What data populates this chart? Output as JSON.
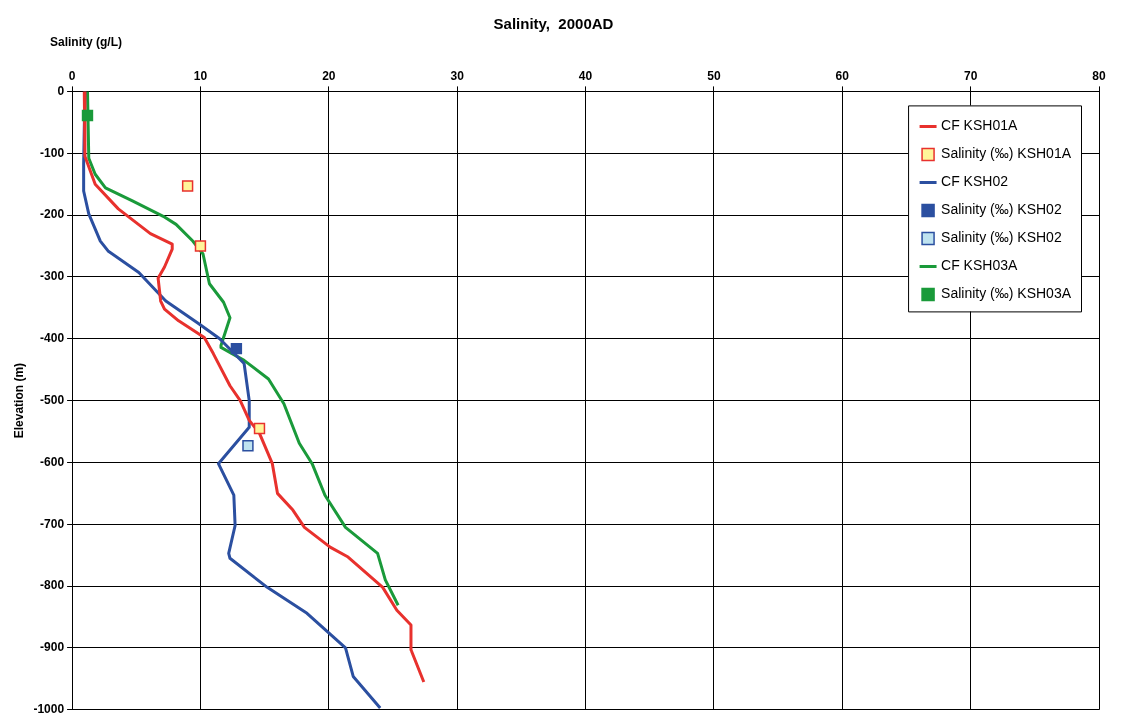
{
  "chart_data": {
    "type": "line",
    "title": "Salinity,  2000AD",
    "xlabel": "Salinity (g/L)",
    "ylabel": "Elevation (m)",
    "xlim": [
      0,
      80
    ],
    "xticks": [
      0,
      10,
      20,
      30,
      40,
      50,
      60,
      70,
      80
    ],
    "ylim": [
      -1000,
      0
    ],
    "yticks": [
      -1000,
      -900,
      -800,
      -700,
      -600,
      -500,
      -400,
      -300,
      -200,
      -100,
      0
    ],
    "grid": true,
    "legend": "top right",
    "marker": "none",
    "line_style": "solid",
    "series": [
      {
        "name": "CF KSH01A",
        "type": "line",
        "color": "#e8312d",
        "x": [
          0.95,
          1.0,
          1.8,
          3.6,
          6.1,
          7.8,
          7.8,
          7.2,
          6.7,
          6.9,
          7.2,
          8.3,
          10.3,
          11.0,
          12.3,
          13.1,
          13.8,
          14.6,
          15.6,
          16.0,
          17.2,
          18.1,
          20.1,
          21.5,
          24.2,
          25.3,
          26.4,
          26.4,
          27.4
        ],
        "values": [
          0,
          -105,
          -150,
          -190,
          -230,
          -247,
          -255,
          -284,
          -302,
          -339,
          -352,
          -371,
          -398,
          -424,
          -476,
          -500,
          -532,
          -553,
          -602,
          -650,
          -677,
          -705,
          -737,
          -753,
          -802,
          -839,
          -863,
          -903,
          -955
        ]
      },
      {
        "name": "Salinity (‰) KSH01A",
        "type": "scatter",
        "marker": "square",
        "color": "#fff59a",
        "x": [
          9.0,
          10.0,
          14.6
        ],
        "values": [
          -153,
          -250,
          -545
        ]
      },
      {
        "name": "CF KSH02",
        "type": "line",
        "color": "#2b4fa0",
        "x": [
          1.0,
          0.9,
          0.9,
          1.3,
          2.2,
          2.8,
          5.2,
          7.3,
          9.9,
          11.5,
          13.4,
          13.8,
          13.8,
          11.4,
          12.6,
          12.7,
          12.2,
          12.3,
          15.2,
          18.3,
          21.3,
          21.9,
          24.0
        ],
        "values": [
          0,
          -118,
          -161,
          -198,
          -242,
          -258,
          -293,
          -339,
          -376,
          -400,
          -440,
          -500,
          -543,
          -602,
          -653,
          -702,
          -747,
          -755,
          -802,
          -844,
          -900,
          -946,
          -997
        ]
      },
      {
        "name": "Salinity (‰) KSH02",
        "type": "scatter",
        "marker": "square",
        "color": "#2b4fa0",
        "x": [
          12.8
        ],
        "values": [
          -416
        ]
      },
      {
        "name": "Salinity (‰) KSH02",
        "type": "scatter",
        "marker": "square",
        "color": "#bfe3f0",
        "x": [
          13.7
        ],
        "values": [
          -573
        ]
      },
      {
        "name": "CF KSH03A",
        "type": "line",
        "color": "#1a9a3a",
        "x": [
          1.2,
          1.3,
          1.8,
          2.6,
          4.7,
          7.1,
          8.1,
          9.4,
          10.2,
          10.7,
          11.8,
          12.3,
          11.6,
          11.6,
          13.4,
          15.3,
          16.5,
          17.7,
          18.7,
          19.7,
          21.3,
          23.8,
          24.4,
          25.4
        ],
        "values": [
          0,
          -108,
          -134,
          -156,
          -177,
          -202,
          -215,
          -242,
          -263,
          -311,
          -341,
          -366,
          -411,
          -414,
          -435,
          -465,
          -505,
          -569,
          -602,
          -653,
          -705,
          -747,
          -790,
          -831
        ]
      },
      {
        "name": "Salinity (‰) KSH03A",
        "type": "scatter",
        "marker": "square",
        "color": "#1a9a3a",
        "x": [
          1.2
        ],
        "values": [
          -39
        ]
      }
    ]
  }
}
